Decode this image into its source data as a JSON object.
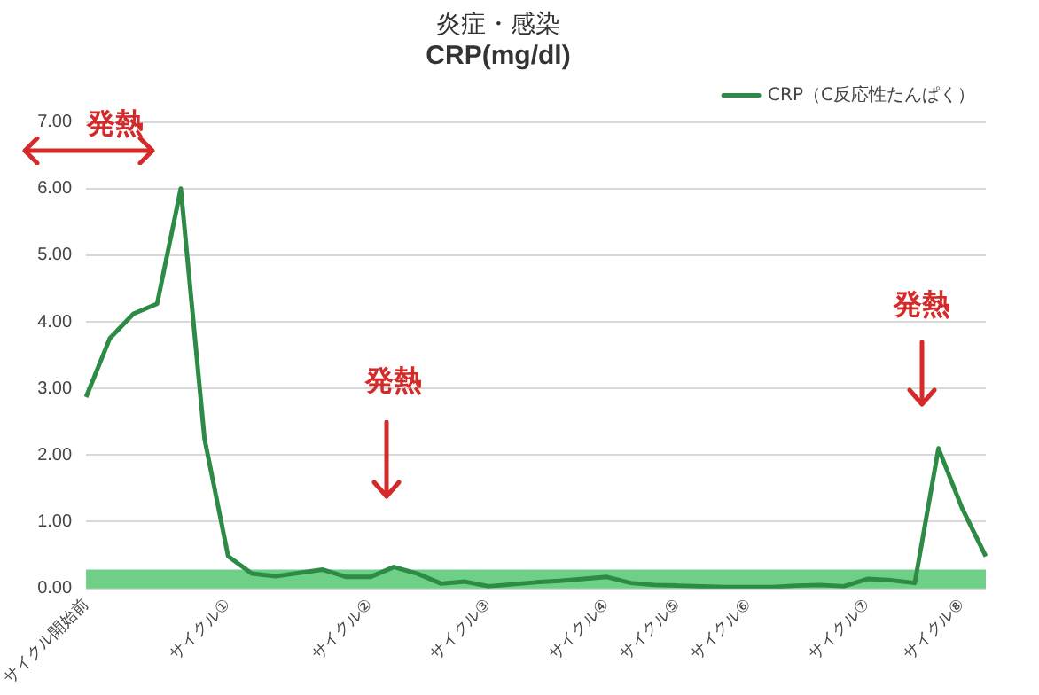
{
  "chart_data": {
    "type": "line",
    "title": "炎症・感染",
    "subtitle": "CRP(mg/dl)",
    "categories": [
      "サイクル開始前",
      null,
      null,
      null,
      null,
      null,
      "サイクル①",
      null,
      null,
      null,
      null,
      null,
      "サイクル②",
      null,
      null,
      null,
      null,
      "サイクル③",
      null,
      null,
      null,
      null,
      "サイクル④",
      null,
      null,
      "サイクル⑤",
      null,
      null,
      "サイクル⑥",
      null,
      null,
      null,
      null,
      "サイクル⑦",
      null,
      null,
      null,
      "サイクル⑧",
      null
    ],
    "series": [
      {
        "name": "CRP（C反応性たんぱく）",
        "color": "#2e8b45",
        "values": [
          2.87,
          3.75,
          4.12,
          4.27,
          6.0,
          2.25,
          0.48,
          0.22,
          0.18,
          0.23,
          0.28,
          0.17,
          0.17,
          0.32,
          0.22,
          0.07,
          0.1,
          0.03,
          0.06,
          0.09,
          0.11,
          0.14,
          0.17,
          0.08,
          0.05,
          0.04,
          0.03,
          0.02,
          0.02,
          0.02,
          0.04,
          0.05,
          0.03,
          0.14,
          0.12,
          0.08,
          2.1,
          1.2,
          0.48
        ]
      }
    ],
    "ylim": [
      0,
      7
    ],
    "yticks": [
      {
        "value": 0,
        "label": "0.00"
      },
      {
        "value": 1,
        "label": "1.00"
      },
      {
        "value": 2,
        "label": "2.00"
      },
      {
        "value": 3,
        "label": "3.00"
      },
      {
        "value": 4,
        "label": "4.00"
      },
      {
        "value": 5,
        "label": "5.00"
      },
      {
        "value": 6,
        "label": "6.00"
      },
      {
        "value": 7,
        "label": "7.00"
      }
    ],
    "bands": [
      {
        "axis": "y",
        "from": 0,
        "to": 0.28,
        "color": "#6fcf86"
      }
    ],
    "annotations": [
      "発熱",
      "発熱",
      "発熱"
    ],
    "grid": "y",
    "legend": "top right",
    "marker": "none",
    "line_style": "solid"
  }
}
